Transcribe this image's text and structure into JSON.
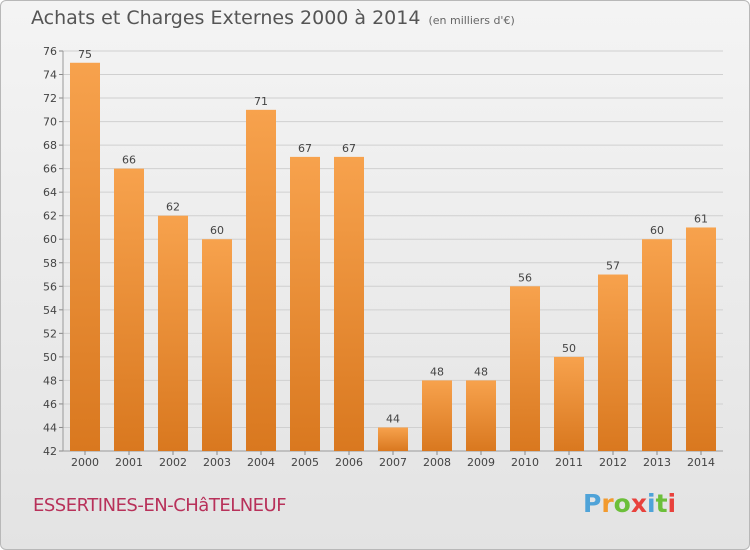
{
  "header": {
    "title": "Achats et Charges Externes 2000 à 2014",
    "subtitle": "(en milliers d'€)"
  },
  "footer": {
    "place": "ESSERTINES-EN-CHâTELNEUF",
    "logo_text": "Proxiti"
  },
  "colors": {
    "bar_light": "#f7a24d",
    "bar_dark": "#d9781f",
    "grid": "#d0d0d0",
    "axis_text": "#444444",
    "logo": [
      "#4fa3d8",
      "#f29a2e",
      "#6cbf3a",
      "#e8413c",
      "#4fa3d8",
      "#6cbf3a",
      "#e8413c"
    ]
  },
  "chart_data": {
    "type": "bar",
    "title": "Achats et Charges Externes 2000 à 2014",
    "subtitle": "(en milliers d'€)",
    "categories": [
      "2000",
      "2001",
      "2002",
      "2003",
      "2004",
      "2005",
      "2006",
      "2007",
      "2008",
      "2009",
      "2010",
      "2011",
      "2012",
      "2013",
      "2014"
    ],
    "values": [
      75,
      66,
      62,
      60,
      71,
      67,
      67,
      44,
      48,
      48,
      56,
      50,
      57,
      60,
      61
    ],
    "ylim": [
      42,
      76
    ],
    "yticks": [
      42,
      44,
      46,
      48,
      50,
      52,
      54,
      56,
      58,
      60,
      62,
      64,
      66,
      68,
      70,
      72,
      74,
      76
    ],
    "grid": true,
    "data_labels": true
  }
}
